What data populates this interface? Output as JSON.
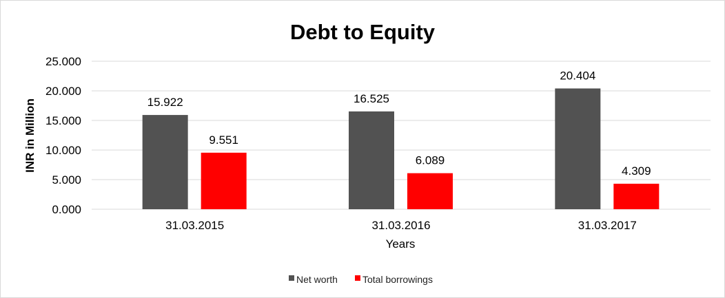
{
  "chart_data": {
    "type": "bar",
    "title": "Debt to Equity",
    "xlabel": "Years",
    "ylabel": "INR in Million",
    "categories": [
      "31.03.2015",
      "31.03.2016",
      "31.03.2017"
    ],
    "series": [
      {
        "name": "Net worth",
        "values": [
          15.922,
          16.525,
          20.404
        ],
        "labels": [
          "15.922",
          "16.525",
          "20.404"
        ],
        "color": "#525252"
      },
      {
        "name": "Total borrowings",
        "values": [
          9.551,
          6.089,
          4.309
        ],
        "labels": [
          "9.551",
          "6.089",
          "4.309"
        ],
        "color": "#ff0000"
      }
    ],
    "ylim": [
      0,
      25
    ],
    "yticks": [
      "0.000",
      "5.000",
      "10.000",
      "15.000",
      "20.000",
      "25.000"
    ],
    "grid": true,
    "legend": "bottom"
  }
}
